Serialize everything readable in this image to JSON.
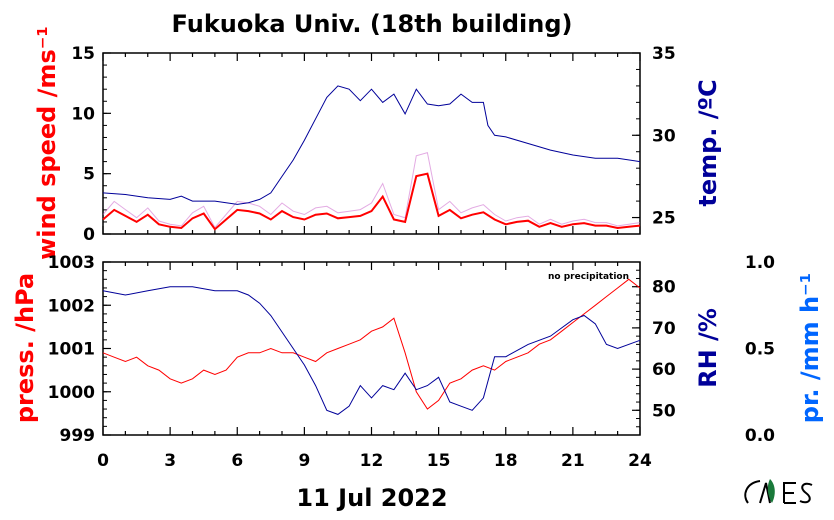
{
  "title": "Fukuoka Univ. (18th building)",
  "date_label": "11 Jul 2022",
  "note": "no precipitation",
  "colors": {
    "wind": "#ff0000",
    "wind_raw": "#cc66cc",
    "temp": "#000099",
    "pressure": "#ff0000",
    "rh": "#000099",
    "precip": "#0066ff",
    "axis": "#000000"
  },
  "chart_data": [
    {
      "type": "line",
      "panel": "top",
      "xlim": [
        0,
        24
      ],
      "x_ticks": [
        "0",
        "3",
        "6",
        "9",
        "12",
        "15",
        "18",
        "21",
        "24"
      ],
      "left_axis": {
        "label": "wind speed /ms⁻¹",
        "ylim": [
          0,
          15
        ],
        "ticks": [
          "0",
          "5",
          "10",
          "15"
        ]
      },
      "right_axis": {
        "label": "temp. /ºC",
        "ylim": [
          24,
          35
        ],
        "ticks": [
          "25",
          "30",
          "35"
        ]
      },
      "series": [
        {
          "axis": "left",
          "x": [
            0,
            0.5,
            1,
            1.5,
            2,
            2.5,
            3,
            3.5,
            4,
            4.5,
            5,
            5.5,
            6,
            6.5,
            7,
            7.5,
            8,
            8.5,
            9,
            9.5,
            10,
            10.5,
            11,
            11.5,
            12,
            12.5,
            13,
            13.5,
            14,
            14.5,
            15,
            15.5,
            16,
            16.5,
            17,
            17.5,
            18,
            18.5,
            19,
            19.5,
            20,
            20.5,
            21,
            21.5,
            22,
            22.5,
            23,
            23.5,
            24
          ],
          "y": [
            1.2,
            2.0,
            1.5,
            1.0,
            1.6,
            0.8,
            0.6,
            0.5,
            1.3,
            1.7,
            0.4,
            1.2,
            2.0,
            1.9,
            1.7,
            1.2,
            1.9,
            1.4,
            1.2,
            1.6,
            1.7,
            1.3,
            1.4,
            1.5,
            1.9,
            3.1,
            1.2,
            1.0,
            4.8,
            5.0,
            1.5,
            2.0,
            1.3,
            1.6,
            1.8,
            1.2,
            0.8,
            1.0,
            1.1,
            0.6,
            0.9,
            0.6,
            0.8,
            0.9,
            0.7,
            0.7,
            0.5,
            0.6,
            0.7
          ]
        },
        {
          "axis": "right",
          "x": [
            0,
            1,
            2,
            3,
            3.5,
            4,
            5,
            6,
            6.5,
            7,
            7.5,
            8,
            8.5,
            9,
            9.5,
            10,
            10.5,
            11,
            11.5,
            12,
            12.5,
            13,
            13.5,
            14,
            14.5,
            15,
            15.5,
            16,
            16.5,
            17,
            17.2,
            17.5,
            18,
            19,
            20,
            21,
            22,
            23,
            24
          ],
          "y": [
            26.5,
            26.4,
            26.2,
            26.1,
            26.3,
            26.0,
            26.0,
            25.8,
            25.9,
            26.1,
            26.5,
            27.5,
            28.5,
            29.7,
            31.0,
            32.3,
            33.0,
            32.8,
            32.1,
            32.8,
            32.0,
            32.5,
            31.3,
            32.8,
            31.9,
            31.8,
            31.9,
            32.5,
            32.0,
            32.0,
            30.6,
            30.0,
            29.9,
            29.5,
            29.1,
            28.8,
            28.6,
            28.6,
            28.4
          ]
        }
      ]
    },
    {
      "type": "line",
      "panel": "bottom",
      "xlim": [
        0,
        24
      ],
      "x_ticks": [
        "0",
        "3",
        "6",
        "9",
        "12",
        "15",
        "18",
        "21",
        "24"
      ],
      "left_axis": {
        "label": "press. /hPa",
        "ylim": [
          999,
          1003
        ],
        "ticks": [
          "999",
          "1000",
          "1001",
          "1002",
          "1003"
        ]
      },
      "right_axis": {
        "label": "RH /%",
        "ylim": [
          44,
          86
        ],
        "ticks": [
          "50",
          "60",
          "70",
          "80"
        ]
      },
      "third_axis": {
        "label": "pr. /mm h⁻¹",
        "ylim": [
          0,
          1
        ],
        "ticks": [
          "0.0",
          "0.5",
          "1.0"
        ]
      },
      "series": [
        {
          "axis": "left",
          "x": [
            0,
            0.5,
            1,
            1.5,
            2,
            2.5,
            3,
            3.5,
            4,
            4.5,
            5,
            5.5,
            6,
            6.5,
            7,
            7.5,
            8,
            8.5,
            9,
            9.5,
            10,
            10.5,
            11,
            11.5,
            12,
            12.5,
            13,
            13.5,
            14,
            14.5,
            15,
            15.5,
            16,
            16.5,
            17,
            17.5,
            18,
            18.5,
            19,
            19.5,
            20,
            20.5,
            21,
            21.5,
            22,
            22.5,
            23,
            23.5,
            24
          ],
          "y": [
            1000.9,
            1000.8,
            1000.7,
            1000.8,
            1000.6,
            1000.5,
            1000.3,
            1000.2,
            1000.3,
            1000.5,
            1000.4,
            1000.5,
            1000.8,
            1000.9,
            1000.9,
            1001.0,
            1000.9,
            1000.9,
            1000.8,
            1000.7,
            1000.9,
            1001.0,
            1001.1,
            1001.2,
            1001.4,
            1001.5,
            1001.7,
            1000.9,
            1000.0,
            999.6,
            999.8,
            1000.2,
            1000.3,
            1000.5,
            1000.6,
            1000.5,
            1000.7,
            1000.8,
            1000.9,
            1001.1,
            1001.2,
            1001.4,
            1001.6,
            1001.8,
            1002.0,
            1002.2,
            1002.4,
            1002.6,
            1002.4
          ]
        },
        {
          "axis": "right",
          "x": [
            0,
            1,
            2,
            3,
            4,
            5,
            6,
            6.5,
            7,
            7.5,
            8,
            8.5,
            9,
            9.5,
            10,
            10.5,
            11,
            11.5,
            12,
            12.5,
            13,
            13.5,
            14,
            14.5,
            15,
            15.5,
            16,
            16.5,
            17,
            17.5,
            18,
            19,
            20,
            20.5,
            21,
            21.5,
            22,
            22.5,
            23,
            24
          ],
          "y": [
            79,
            78,
            79,
            80,
            80,
            79,
            79,
            78,
            76,
            73,
            69,
            65,
            61,
            56,
            50,
            49,
            51,
            56,
            53,
            56,
            55,
            59,
            55,
            56,
            58,
            52,
            51,
            50,
            53,
            63,
            63,
            66,
            68,
            70,
            72,
            73,
            71,
            66,
            65,
            67
          ]
        }
      ]
    }
  ]
}
